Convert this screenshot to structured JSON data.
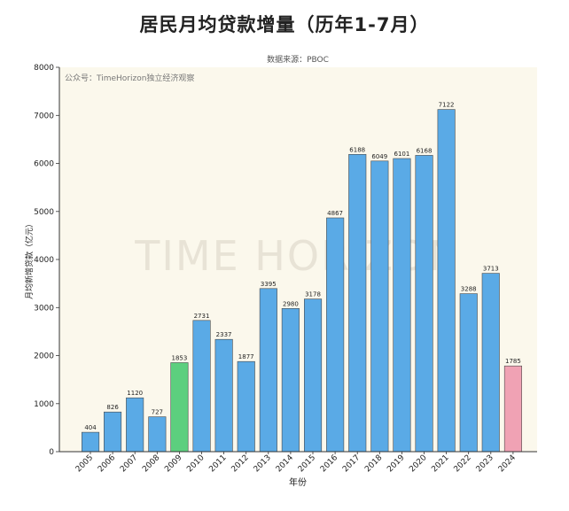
{
  "chart_data": {
    "type": "bar",
    "title": "居民月均贷款增量（历年1-7月）",
    "subtitle": "数据来源：PBOC",
    "annotation": "公众号：TimeHorizon独立经济观察",
    "watermark": "TIME HORIZON",
    "xlabel": "年份",
    "ylabel": "月均新增贷款（亿元）",
    "ylim": [
      0,
      8000
    ],
    "yticks": [
      0,
      1000,
      2000,
      3000,
      4000,
      5000,
      6000,
      7000,
      8000
    ],
    "grid": false,
    "categories": [
      "2005",
      "2006",
      "2007",
      "2008",
      "2009",
      "2010",
      "2011",
      "2012",
      "2013",
      "2014",
      "2015",
      "2016",
      "2017",
      "2018",
      "2019",
      "2020",
      "2021",
      "2022",
      "2023",
      "2024"
    ],
    "values": [
      404,
      826,
      1120,
      727,
      1853,
      2731,
      2337,
      1877,
      3395,
      2980,
      3178,
      4867,
      6188,
      6049,
      6101,
      6168,
      7122,
      3288,
      3713,
      1785
    ],
    "colors": {
      "default": "#5aaae6",
      "highlight_2009": "#5ccf7e",
      "highlight_2024": "#f0a2b4"
    },
    "bar_color_keys": [
      "default",
      "default",
      "default",
      "default",
      "highlight_2009",
      "default",
      "default",
      "default",
      "default",
      "default",
      "default",
      "default",
      "default",
      "default",
      "default",
      "default",
      "default",
      "default",
      "default",
      "highlight_2024"
    ]
  }
}
